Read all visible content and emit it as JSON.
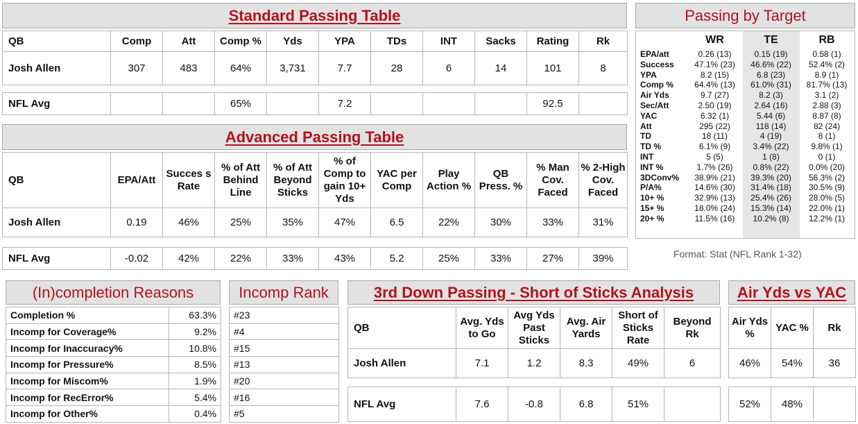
{
  "standard": {
    "title": "Standard Passing Table",
    "headers": [
      "QB",
      "Comp",
      "Att",
      "Comp %",
      "Yds",
      "YPA",
      "TDs",
      "INT",
      "Sacks",
      "Rating",
      "Rk"
    ],
    "player": [
      "Josh Allen",
      "307",
      "483",
      "64%",
      "3,731",
      "7.7",
      "28",
      "6",
      "14",
      "101",
      "8"
    ],
    "avg": [
      "NFL Avg",
      "",
      "",
      "65%",
      "",
      "7.2",
      "",
      "",
      "",
      "92.5",
      ""
    ]
  },
  "advanced": {
    "title": "Advanced Passing Table",
    "headers": [
      "QB",
      "EPA/Att",
      "Succes s Rate",
      "% of Att Behind Line",
      "% of Att Beyond Sticks",
      "% of Comp to gain 10+ Yds",
      "YAC per Comp",
      "Play Action %",
      "QB Press. %",
      "% Man Cov. Faced",
      "% 2-High Cov. Faced"
    ],
    "player": [
      "Josh Allen",
      "0.19",
      "46%",
      "25%",
      "35%",
      "47%",
      "6.5",
      "22%",
      "30%",
      "33%",
      "31%"
    ],
    "avg": [
      "NFL Avg",
      "-0.02",
      "42%",
      "22%",
      "33%",
      "43%",
      "5.2",
      "25%",
      "33%",
      "27%",
      "39%"
    ]
  },
  "target": {
    "title": "Passing by Target",
    "headers": [
      "",
      "WR",
      "TE",
      "RB"
    ],
    "rows": [
      [
        "EPA/att",
        "0.26 (13)",
        "0.15 (19)",
        "0.58 (1)"
      ],
      [
        "Success",
        "47.1% (23)",
        "46.6% (22)",
        "52.4% (2)"
      ],
      [
        "YPA",
        "8.2 (15)",
        "6.8 (23)",
        "8.9 (1)"
      ],
      [
        "Comp %",
        "64.4% (13)",
        "61.0% (31)",
        "81.7% (13)"
      ],
      [
        "Air Yds",
        "9.7 (27)",
        "8.2 (3)",
        "3.1 (2)"
      ],
      [
        "Sec/Att",
        "2.50 (19)",
        "2.64 (16)",
        "2.88 (3)"
      ],
      [
        "YAC",
        "6.32 (1)",
        "5.44 (6)",
        "8.87 (8)"
      ],
      [
        "Att",
        "295 (22)",
        "118 (14)",
        "82 (24)"
      ],
      [
        "TD",
        "18 (11)",
        "4 (19)",
        "8 (1)"
      ],
      [
        "TD %",
        "6.1% (9)",
        "3.4% (22)",
        "9.8% (1)"
      ],
      [
        "INT",
        "5 (5)",
        "1 (8)",
        "0 (1)"
      ],
      [
        "INT %",
        "1.7% (26)",
        "0.8% (22)",
        "0.0% (20)"
      ],
      [
        "3DConv%",
        "38.9% (21)",
        "39.3% (20)",
        "56.3% (2)"
      ],
      [
        "P/A%",
        "14.6% (30)",
        "31.4% (18)",
        "30.5% (9)"
      ],
      [
        "10+ %",
        "32.9% (13)",
        "25.4% (26)",
        "28.0% (5)"
      ],
      [
        "15+ %",
        "18.0% (24)",
        "15.3% (14)",
        "22.0% (1)"
      ],
      [
        "20+ %",
        "11.5% (16)",
        "10.2% (8)",
        "12.2% (1)"
      ]
    ],
    "format_note": "Format: Stat (NFL Rank 1-32)"
  },
  "incompletion": {
    "title": "(In)completion Reasons",
    "rows": [
      [
        "Completion %",
        "63.3%"
      ],
      [
        "Incomp for Coverage%",
        "9.2%"
      ],
      [
        "Incomp for Inaccuracy%",
        "10.8%"
      ],
      [
        "Incomp for Pressure%",
        "8.5%"
      ],
      [
        "Incomp for Miscom%",
        "1.9%"
      ],
      [
        "Incomp for RecError%",
        "5.4%"
      ],
      [
        "Incomp for Other%",
        "0.4%"
      ]
    ]
  },
  "incomp_rank": {
    "title": "Incomp Rank",
    "rows": [
      "#23",
      "#4",
      "#15",
      "#13",
      "#20",
      "#16",
      "#5"
    ]
  },
  "third_down": {
    "title": "3rd Down Passing - Short of Sticks Analysis",
    "headers": [
      "QB",
      "Avg. Yds to Go",
      "Avg Yds Past Sticks",
      "Avg. Air Yards",
      "Short of Sticks Rate",
      "Beyond Rk"
    ],
    "player": [
      "Josh Allen",
      "7.1",
      "1.2",
      "8.3",
      "49%",
      "6"
    ],
    "avg": [
      "NFL Avg",
      "7.6",
      "-0.8",
      "6.8",
      "51%",
      ""
    ]
  },
  "air_yac": {
    "title": "Air Yds vs YAC",
    "headers": [
      "Air Yds %",
      "YAC %",
      "Rk"
    ],
    "player": [
      "46%",
      "54%",
      "36"
    ],
    "avg": [
      "52%",
      "48%",
      ""
    ]
  }
}
